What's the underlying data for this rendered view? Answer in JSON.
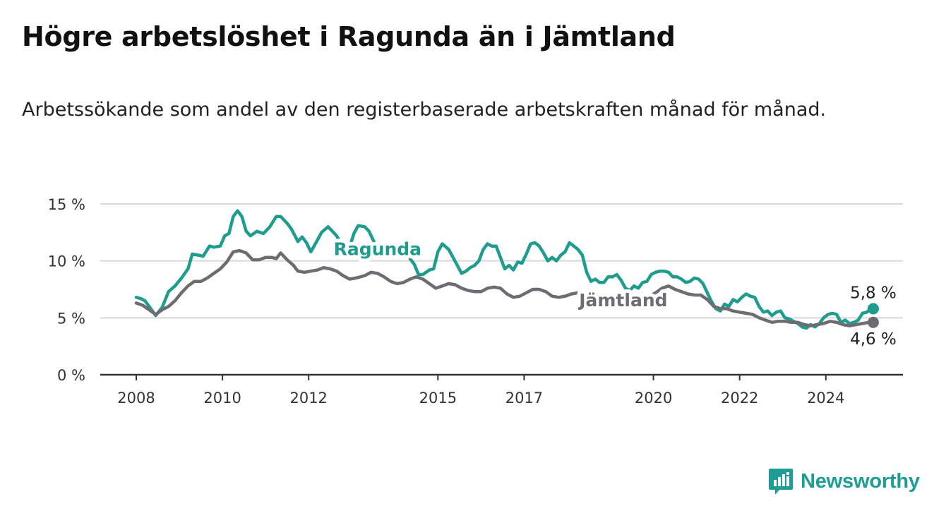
{
  "title": "Högre arbetslöshet i Ragunda än i Jämtland",
  "subtitle": "Arbetssökande som andel av den registerbaserade arbetskraften månad för månad.",
  "brand": {
    "name": "Newsworthy",
    "icon": "newsworthy-logo-icon",
    "color": "#1e9d97"
  },
  "chart_data": {
    "type": "line",
    "ylim": [
      0,
      15
    ],
    "xlim": [
      2008,
      2025.9
    ],
    "y_ticks": [
      {
        "value": 0,
        "label": "0 %"
      },
      {
        "value": 5,
        "label": "5 %"
      },
      {
        "value": 10,
        "label": "10 %"
      },
      {
        "value": 15,
        "label": "15 %"
      }
    ],
    "x_ticks": [
      {
        "value": 2008,
        "label": "2008"
      },
      {
        "value": 2010,
        "label": "2010"
      },
      {
        "value": 2012,
        "label": "2012"
      },
      {
        "value": 2015,
        "label": "2015"
      },
      {
        "value": 2017,
        "label": "2017"
      },
      {
        "value": 2020,
        "label": "2020"
      },
      {
        "value": 2022,
        "label": "2022"
      },
      {
        "value": 2024,
        "label": "2024"
      }
    ],
    "grid": true,
    "series": [
      {
        "name": "Ragunda",
        "color": "#1e9d8e",
        "end_label": "5,8 %",
        "points": [
          [
            2008.0,
            6.8
          ],
          [
            2008.1,
            6.7
          ],
          [
            2008.2,
            6.5
          ],
          [
            2008.3,
            6.0
          ],
          [
            2008.45,
            5.2
          ],
          [
            2008.6,
            5.9
          ],
          [
            2008.75,
            7.3
          ],
          [
            2008.9,
            7.8
          ],
          [
            2009.05,
            8.5
          ],
          [
            2009.2,
            9.3
          ],
          [
            2009.3,
            10.6
          ],
          [
            2009.45,
            10.5
          ],
          [
            2009.55,
            10.4
          ],
          [
            2009.7,
            11.3
          ],
          [
            2009.8,
            11.2
          ],
          [
            2009.95,
            11.3
          ],
          [
            2010.05,
            12.2
          ],
          [
            2010.15,
            12.4
          ],
          [
            2010.25,
            13.9
          ],
          [
            2010.35,
            14.4
          ],
          [
            2010.45,
            13.9
          ],
          [
            2010.55,
            12.6
          ],
          [
            2010.65,
            12.2
          ],
          [
            2010.8,
            12.6
          ],
          [
            2010.95,
            12.4
          ],
          [
            2011.1,
            13.0
          ],
          [
            2011.25,
            13.9
          ],
          [
            2011.35,
            13.9
          ],
          [
            2011.5,
            13.3
          ],
          [
            2011.6,
            12.8
          ],
          [
            2011.75,
            11.7
          ],
          [
            2011.85,
            12.1
          ],
          [
            2011.95,
            11.6
          ],
          [
            2012.05,
            10.8
          ],
          [
            2012.2,
            11.8
          ],
          [
            2012.3,
            12.5
          ],
          [
            2012.45,
            13.0
          ],
          [
            2012.55,
            12.6
          ],
          [
            2012.65,
            12.2
          ],
          [
            2012.75,
            11.5
          ],
          [
            2012.85,
            11.6
          ],
          [
            2012.95,
            11.2
          ],
          [
            2013.05,
            12.4
          ],
          [
            2013.15,
            13.1
          ],
          [
            2013.3,
            13.0
          ],
          [
            2013.4,
            12.6
          ],
          [
            2013.5,
            11.8
          ],
          [
            2013.6,
            11.0
          ],
          [
            2013.7,
            10.9
          ],
          [
            2013.8,
            11.3
          ],
          [
            2013.9,
            11.4
          ],
          [
            2014.0,
            11.2
          ],
          [
            2014.1,
            11.3
          ],
          [
            2014.25,
            11.1
          ],
          [
            2014.35,
            10.2
          ],
          [
            2014.45,
            9.7
          ],
          [
            2014.55,
            8.8
          ],
          [
            2014.65,
            8.8
          ],
          [
            2014.8,
            9.2
          ],
          [
            2014.9,
            9.3
          ],
          [
            2015.0,
            10.8
          ],
          [
            2015.1,
            11.5
          ],
          [
            2015.25,
            11.0
          ],
          [
            2015.35,
            10.3
          ],
          [
            2015.45,
            9.6
          ],
          [
            2015.55,
            8.9
          ],
          [
            2015.65,
            9.1
          ],
          [
            2015.75,
            9.4
          ],
          [
            2015.85,
            9.6
          ],
          [
            2015.95,
            10.0
          ],
          [
            2016.05,
            11.0
          ],
          [
            2016.15,
            11.5
          ],
          [
            2016.25,
            11.3
          ],
          [
            2016.35,
            11.3
          ],
          [
            2016.45,
            10.3
          ],
          [
            2016.55,
            9.3
          ],
          [
            2016.65,
            9.6
          ],
          [
            2016.75,
            9.2
          ],
          [
            2016.85,
            9.9
          ],
          [
            2016.95,
            9.8
          ],
          [
            2017.05,
            10.6
          ],
          [
            2017.15,
            11.5
          ],
          [
            2017.25,
            11.6
          ],
          [
            2017.35,
            11.3
          ],
          [
            2017.45,
            10.7
          ],
          [
            2017.55,
            10.0
          ],
          [
            2017.65,
            10.3
          ],
          [
            2017.75,
            10.0
          ],
          [
            2017.85,
            10.5
          ],
          [
            2017.95,
            10.8
          ],
          [
            2018.05,
            11.6
          ],
          [
            2018.15,
            11.3
          ],
          [
            2018.25,
            11.0
          ],
          [
            2018.35,
            10.5
          ],
          [
            2018.45,
            9.0
          ],
          [
            2018.55,
            8.2
          ],
          [
            2018.65,
            8.4
          ],
          [
            2018.75,
            8.1
          ],
          [
            2018.85,
            8.1
          ],
          [
            2018.95,
            8.6
          ],
          [
            2019.05,
            8.6
          ],
          [
            2019.15,
            8.8
          ],
          [
            2019.25,
            8.3
          ],
          [
            2019.35,
            7.6
          ],
          [
            2019.45,
            7.4
          ],
          [
            2019.55,
            7.8
          ],
          [
            2019.65,
            7.6
          ],
          [
            2019.75,
            8.1
          ],
          [
            2019.85,
            8.2
          ],
          [
            2019.95,
            8.8
          ],
          [
            2020.05,
            9.0
          ],
          [
            2020.15,
            9.1
          ],
          [
            2020.25,
            9.1
          ],
          [
            2020.35,
            9.0
          ],
          [
            2020.45,
            8.6
          ],
          [
            2020.55,
            8.6
          ],
          [
            2020.65,
            8.4
          ],
          [
            2020.75,
            8.1
          ],
          [
            2020.85,
            8.2
          ],
          [
            2020.95,
            8.5
          ],
          [
            2021.05,
            8.4
          ],
          [
            2021.15,
            8.0
          ],
          [
            2021.25,
            7.2
          ],
          [
            2021.35,
            6.4
          ],
          [
            2021.45,
            5.8
          ],
          [
            2021.55,
            5.6
          ],
          [
            2021.65,
            6.2
          ],
          [
            2021.75,
            6.0
          ],
          [
            2021.85,
            6.6
          ],
          [
            2021.95,
            6.4
          ],
          [
            2022.05,
            6.8
          ],
          [
            2022.15,
            7.1
          ],
          [
            2022.25,
            6.9
          ],
          [
            2022.35,
            6.8
          ],
          [
            2022.45,
            6.0
          ],
          [
            2022.55,
            5.5
          ],
          [
            2022.65,
            5.6
          ],
          [
            2022.75,
            5.2
          ],
          [
            2022.85,
            5.5
          ],
          [
            2022.95,
            5.6
          ],
          [
            2023.05,
            5.0
          ],
          [
            2023.15,
            4.9
          ],
          [
            2023.25,
            4.7
          ],
          [
            2023.35,
            4.5
          ],
          [
            2023.45,
            4.2
          ],
          [
            2023.55,
            4.1
          ],
          [
            2023.65,
            4.4
          ],
          [
            2023.75,
            4.2
          ],
          [
            2023.85,
            4.5
          ],
          [
            2023.95,
            5.0
          ],
          [
            2024.05,
            5.3
          ],
          [
            2024.15,
            5.4
          ],
          [
            2024.25,
            5.3
          ],
          [
            2024.35,
            4.6
          ],
          [
            2024.45,
            4.8
          ],
          [
            2024.55,
            4.5
          ],
          [
            2024.65,
            4.6
          ],
          [
            2024.75,
            4.8
          ],
          [
            2024.85,
            5.4
          ],
          [
            2024.95,
            5.5
          ],
          [
            2025.05,
            5.8
          ],
          [
            2025.1,
            5.8
          ]
        ]
      },
      {
        "name": "Jämtland",
        "color": "#6e6c70",
        "end_label": "4,6 %",
        "points": [
          [
            2008.0,
            6.3
          ],
          [
            2008.15,
            6.1
          ],
          [
            2008.3,
            5.7
          ],
          [
            2008.45,
            5.3
          ],
          [
            2008.6,
            5.7
          ],
          [
            2008.75,
            6.0
          ],
          [
            2008.9,
            6.5
          ],
          [
            2009.05,
            7.2
          ],
          [
            2009.2,
            7.8
          ],
          [
            2009.35,
            8.2
          ],
          [
            2009.5,
            8.2
          ],
          [
            2009.65,
            8.5
          ],
          [
            2009.8,
            8.9
          ],
          [
            2009.95,
            9.3
          ],
          [
            2010.1,
            9.9
          ],
          [
            2010.25,
            10.8
          ],
          [
            2010.4,
            10.9
          ],
          [
            2010.55,
            10.7
          ],
          [
            2010.7,
            10.1
          ],
          [
            2010.85,
            10.1
          ],
          [
            2011.0,
            10.3
          ],
          [
            2011.15,
            10.3
          ],
          [
            2011.25,
            10.2
          ],
          [
            2011.35,
            10.7
          ],
          [
            2011.5,
            10.1
          ],
          [
            2011.65,
            9.6
          ],
          [
            2011.75,
            9.1
          ],
          [
            2011.9,
            9.0
          ],
          [
            2012.05,
            9.1
          ],
          [
            2012.2,
            9.2
          ],
          [
            2012.35,
            9.4
          ],
          [
            2012.5,
            9.3
          ],
          [
            2012.65,
            9.1
          ],
          [
            2012.8,
            8.7
          ],
          [
            2012.95,
            8.4
          ],
          [
            2013.1,
            8.5
          ],
          [
            2013.3,
            8.7
          ],
          [
            2013.45,
            9.0
          ],
          [
            2013.6,
            8.9
          ],
          [
            2013.75,
            8.6
          ],
          [
            2013.9,
            8.2
          ],
          [
            2014.05,
            8.0
          ],
          [
            2014.2,
            8.1
          ],
          [
            2014.35,
            8.4
          ],
          [
            2014.5,
            8.6
          ],
          [
            2014.65,
            8.4
          ],
          [
            2014.8,
            8.0
          ],
          [
            2014.95,
            7.6
          ],
          [
            2015.1,
            7.8
          ],
          [
            2015.25,
            8.0
          ],
          [
            2015.4,
            7.9
          ],
          [
            2015.55,
            7.6
          ],
          [
            2015.7,
            7.4
          ],
          [
            2015.85,
            7.3
          ],
          [
            2016.0,
            7.3
          ],
          [
            2016.15,
            7.6
          ],
          [
            2016.3,
            7.7
          ],
          [
            2016.45,
            7.6
          ],
          [
            2016.6,
            7.1
          ],
          [
            2016.75,
            6.8
          ],
          [
            2016.9,
            6.9
          ],
          [
            2017.05,
            7.2
          ],
          [
            2017.2,
            7.5
          ],
          [
            2017.35,
            7.5
          ],
          [
            2017.5,
            7.3
          ],
          [
            2017.65,
            6.9
          ],
          [
            2017.8,
            6.8
          ],
          [
            2017.95,
            6.9
          ],
          [
            2018.1,
            7.1
          ],
          [
            2018.25,
            7.2
          ],
          [
            2018.4,
            6.9
          ],
          [
            2018.55,
            6.5
          ],
          [
            2018.7,
            6.3
          ],
          [
            2018.85,
            6.4
          ],
          [
            2019.0,
            6.6
          ],
          [
            2019.15,
            6.7
          ],
          [
            2019.3,
            6.6
          ],
          [
            2019.45,
            6.3
          ],
          [
            2019.6,
            6.3
          ],
          [
            2019.75,
            6.5
          ],
          [
            2019.9,
            6.9
          ],
          [
            2020.05,
            7.2
          ],
          [
            2020.2,
            7.6
          ],
          [
            2020.35,
            7.8
          ],
          [
            2020.5,
            7.5
          ],
          [
            2020.65,
            7.3
          ],
          [
            2020.8,
            7.1
          ],
          [
            2020.95,
            7.0
          ],
          [
            2021.1,
            7.0
          ],
          [
            2021.25,
            6.6
          ],
          [
            2021.4,
            6.0
          ],
          [
            2021.55,
            5.8
          ],
          [
            2021.7,
            5.8
          ],
          [
            2021.85,
            5.6
          ],
          [
            2022.0,
            5.5
          ],
          [
            2022.15,
            5.4
          ],
          [
            2022.3,
            5.3
          ],
          [
            2022.45,
            5.0
          ],
          [
            2022.6,
            4.8
          ],
          [
            2022.75,
            4.6
          ],
          [
            2022.9,
            4.7
          ],
          [
            2023.05,
            4.7
          ],
          [
            2023.2,
            4.6
          ],
          [
            2023.35,
            4.6
          ],
          [
            2023.5,
            4.4
          ],
          [
            2023.65,
            4.3
          ],
          [
            2023.8,
            4.4
          ],
          [
            2023.95,
            4.5
          ],
          [
            2024.1,
            4.7
          ],
          [
            2024.25,
            4.6
          ],
          [
            2024.4,
            4.4
          ],
          [
            2024.55,
            4.3
          ],
          [
            2024.7,
            4.4
          ],
          [
            2024.85,
            4.5
          ],
          [
            2025.0,
            4.6
          ],
          [
            2025.1,
            4.6
          ]
        ]
      }
    ],
    "series_labels": [
      {
        "series": "Ragunda",
        "text": "Ragunda",
        "at": [
          2013.6,
          10.5
        ]
      },
      {
        "series": "Jämtland",
        "text": "Jämtland",
        "at": [
          2019.3,
          6.0
        ]
      }
    ]
  }
}
